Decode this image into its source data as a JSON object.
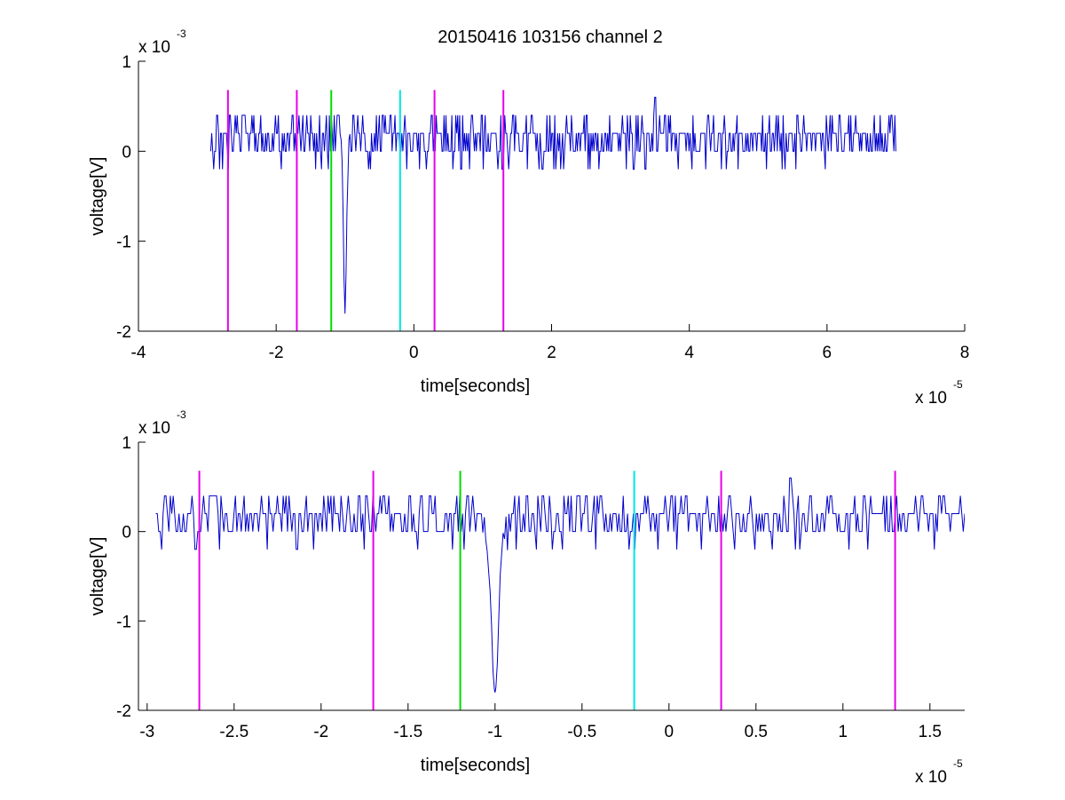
{
  "figure": {
    "title": "20150416 103156 channel 2"
  },
  "chart_data": [
    {
      "type": "line",
      "xlabel": "time[seconds]",
      "ylabel": "voltage[V]",
      "x_multiplier_label": "x 10",
      "x_multiplier_exp": "-5",
      "y_multiplier_label": "x 10",
      "y_multiplier_exp": "-3",
      "xlim": [
        -4e-05,
        8e-05
      ],
      "ylim": [
        -0.002,
        0.001
      ],
      "xticks": [
        -4e-05,
        -2e-05,
        0,
        2e-05,
        4e-05,
        6e-05,
        8e-05
      ],
      "xtick_labels": [
        "-4",
        "-2",
        "0",
        "2",
        "4",
        "6",
        "8"
      ],
      "yticks": [
        -0.002,
        -0.001,
        0,
        0.001
      ],
      "ytick_labels": [
        "-2",
        "-1",
        "0",
        "1"
      ],
      "grid": false,
      "signal": {
        "color": "#0000cc",
        "x_start": -2.95e-05,
        "x_end": 7e-05,
        "base_levels": [
          0.0,
          0.0002,
          0.0004,
          -0.0002
        ],
        "spike": {
          "x_min": -1e-05,
          "y_min": -0.0018
        },
        "max_value": 0.0006,
        "max_at": 3.5e-05
      },
      "markers": [
        {
          "x": -2.7e-05,
          "color": "#e600e6"
        },
        {
          "x": -1.7e-05,
          "color": "#e600e6"
        },
        {
          "x": -1.2e-05,
          "color": "#00dd00"
        },
        {
          "x": -2e-06,
          "color": "#00e6e6"
        },
        {
          "x": 3e-06,
          "color": "#e600e6"
        },
        {
          "x": 1.3e-05,
          "color": "#e600e6"
        }
      ],
      "marker_y_range": [
        -0.002,
        0.00068
      ]
    },
    {
      "type": "line",
      "xlabel": "time[seconds]",
      "ylabel": "voltage[V]",
      "x_multiplier_label": "x 10",
      "x_multiplier_exp": "-5",
      "y_multiplier_label": "x 10",
      "y_multiplier_exp": "-3",
      "xlim": [
        -3.05e-05,
        1.7e-05
      ],
      "ylim": [
        -0.002,
        0.001
      ],
      "xticks": [
        -3e-05,
        -2.5e-05,
        -2e-05,
        -1.5e-05,
        -1e-05,
        -5e-06,
        0,
        5e-06,
        1e-05,
        1.5e-05
      ],
      "xtick_labels": [
        "-3",
        "-2.5",
        "-2",
        "-1.5",
        "-1",
        "-0.5",
        "0",
        "0.5",
        "1",
        "1.5"
      ],
      "yticks": [
        -0.002,
        -0.001,
        0,
        0.001
      ],
      "ytick_labels": [
        "-2",
        "-1",
        "0",
        "1"
      ],
      "grid": false,
      "signal": {
        "color": "#0000cc",
        "x_start": -2.95e-05,
        "x_end": 1.7e-05,
        "base_levels": [
          0.0,
          0.0002,
          0.0004,
          -0.0002
        ],
        "spike": {
          "x_min": -1e-05,
          "y_min": -0.0018
        },
        "max_value": 0.0006,
        "max_at": 7e-06
      },
      "markers": [
        {
          "x": -2.7e-05,
          "color": "#e600e6"
        },
        {
          "x": -1.7e-05,
          "color": "#e600e6"
        },
        {
          "x": -1.2e-05,
          "color": "#00dd00"
        },
        {
          "x": -2e-06,
          "color": "#00e6e6"
        },
        {
          "x": 3e-06,
          "color": "#e600e6"
        },
        {
          "x": 1.3e-05,
          "color": "#e600e6"
        }
      ],
      "marker_y_range": [
        -0.002,
        0.00068
      ]
    }
  ]
}
